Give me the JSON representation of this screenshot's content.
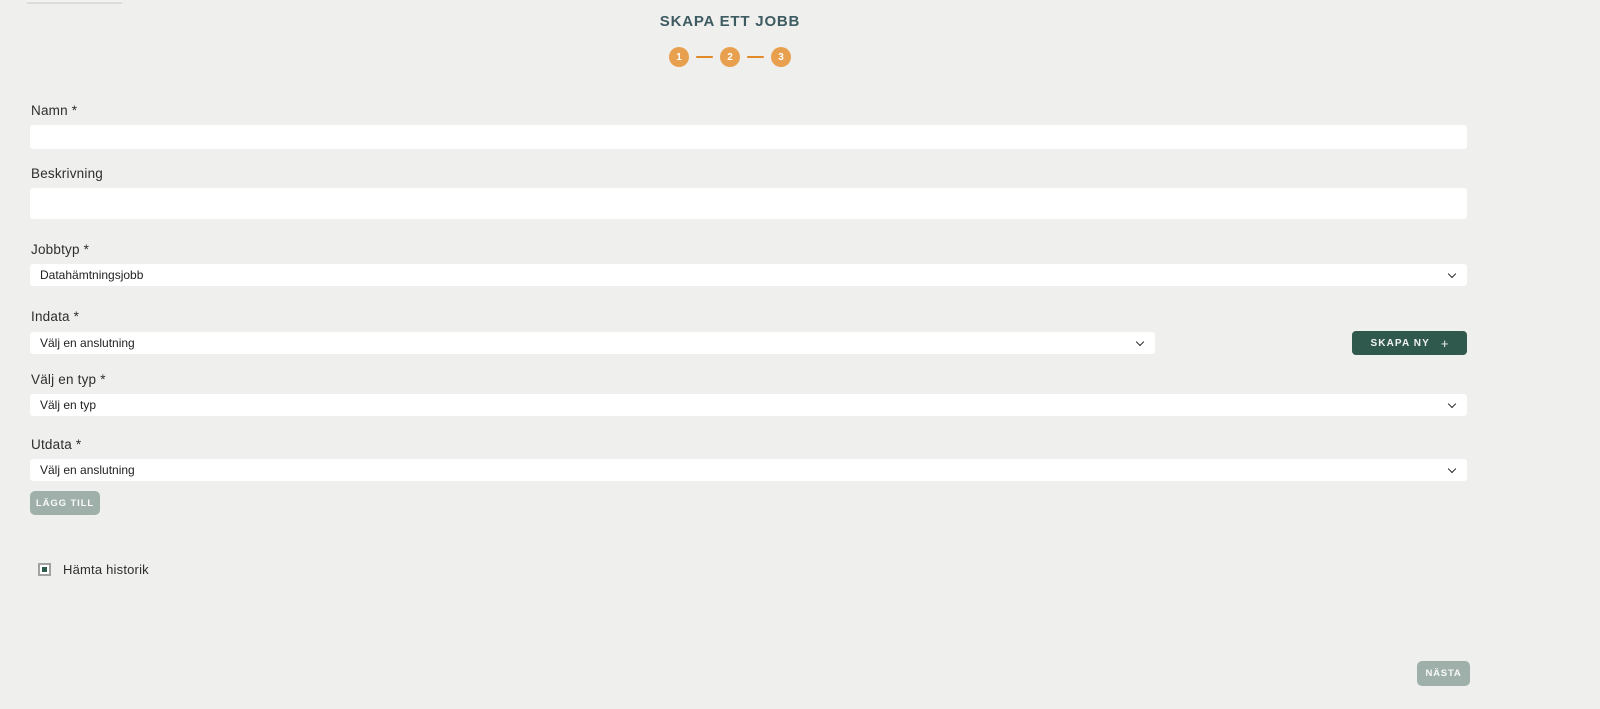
{
  "page": {
    "title": "SKAPA ETT JOBB"
  },
  "stepper": {
    "steps": [
      "1",
      "2",
      "3"
    ]
  },
  "form": {
    "name": {
      "label": "Namn *",
      "value": ""
    },
    "description": {
      "label": "Beskrivning",
      "value": ""
    },
    "job_type": {
      "label": "Jobbtyp *",
      "selected": "Datahämtningsjobb"
    },
    "input_source": {
      "label": "Indata *",
      "selected": "Välj en anslutning"
    },
    "type_select": {
      "label": "Välj en typ *",
      "selected": "Välj en typ"
    },
    "output": {
      "label": "Utdata *",
      "selected": "Välj en anslutning"
    },
    "create_new_button": {
      "label": "SKAPA NY",
      "icon": "+"
    },
    "add_button": {
      "label": "LÄGG TILL"
    },
    "history_checkbox": {
      "label": "Hämta historik",
      "checked": true
    },
    "next_button": {
      "label": "NÄSTA"
    }
  },
  "colors": {
    "background": "#EFEFED",
    "title_teal": "#3D5B61",
    "accent_orange": "#E8A04E",
    "primary_teal": "#30594D",
    "muted_button": "#9FB0AA",
    "checkbox_fill": "#2E5B4E"
  }
}
